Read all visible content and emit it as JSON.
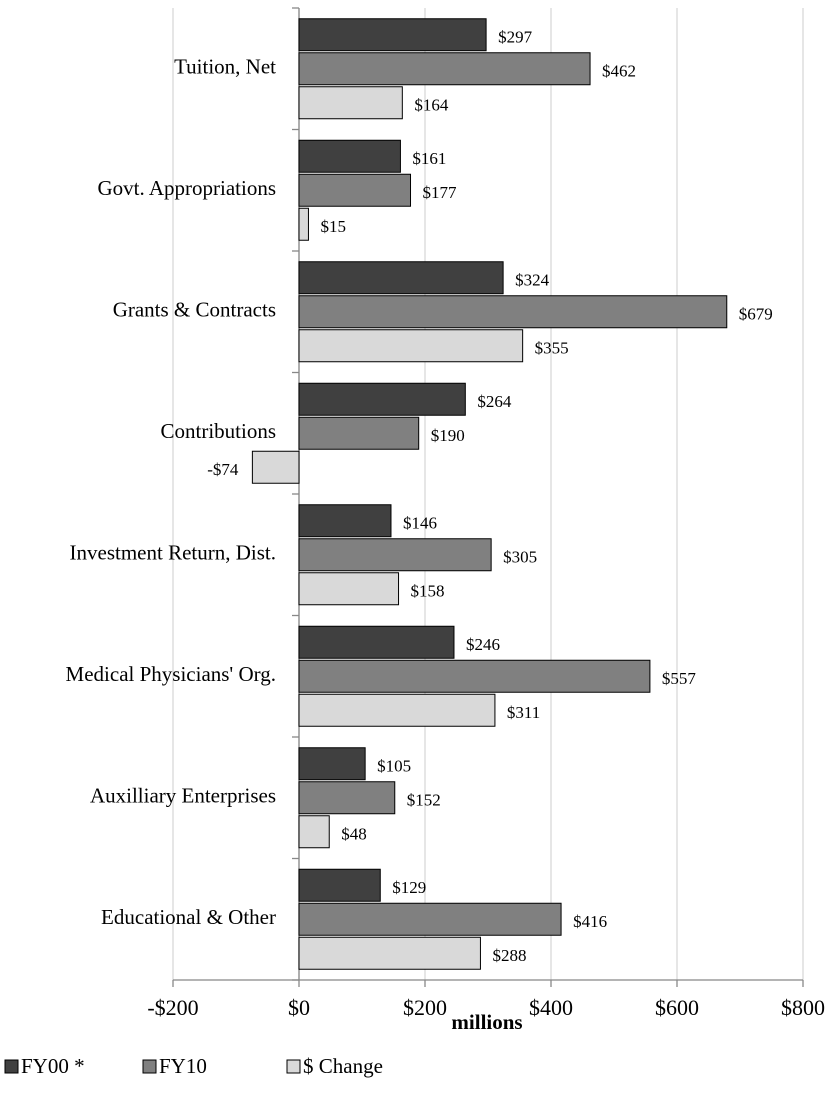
{
  "chart_data": {
    "type": "bar",
    "orientation": "horizontal",
    "categories": [
      "Tuition, Net",
      "Govt. Appropriations",
      "Grants & Contracts",
      "Contributions",
      "Investment Return, Dist.",
      "Medical Physicians' Org.",
      "Auxilliary Enterprises",
      "Educational & Other"
    ],
    "series": [
      {
        "name": "FY00 *",
        "color": "#404040",
        "values": [
          297,
          161,
          324,
          264,
          146,
          246,
          105,
          129
        ],
        "value_labels": [
          "$297",
          "$161",
          "$324",
          "$264",
          "$146",
          "$246",
          "$105",
          "$129"
        ]
      },
      {
        "name": "FY10",
        "color": "#808080",
        "values": [
          462,
          177,
          679,
          190,
          305,
          557,
          152,
          416
        ],
        "value_labels": [
          "$462",
          "$177",
          "$679",
          "$190",
          "$305",
          "$557",
          "$152",
          "$416"
        ]
      },
      {
        "name": "$ Change",
        "color": "#d9d9d9",
        "values": [
          164,
          15,
          355,
          -74,
          158,
          311,
          48,
          288
        ],
        "value_labels": [
          "$164",
          "$15",
          "$355",
          "-$74",
          "$158",
          "$311",
          "$48",
          "$288"
        ]
      }
    ],
    "xlabel": "millions",
    "xlim": [
      -200,
      800
    ],
    "xticks": [
      {
        "value": -200,
        "label": "-$200"
      },
      {
        "value": 0,
        "label": "$0"
      },
      {
        "value": 200,
        "label": "$200"
      },
      {
        "value": 400,
        "label": "$400"
      },
      {
        "value": 600,
        "label": "$600"
      },
      {
        "value": 800,
        "label": "$800"
      }
    ],
    "grid": true,
    "legend": "bottom"
  }
}
